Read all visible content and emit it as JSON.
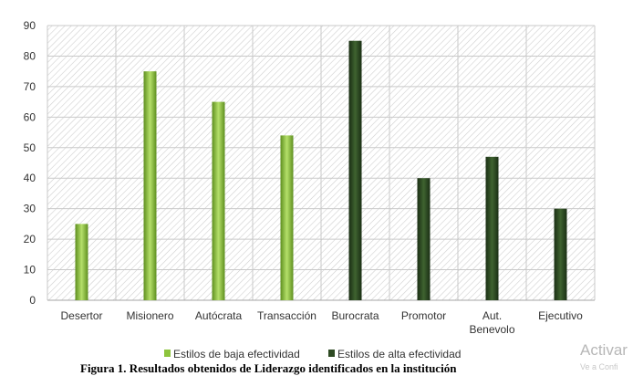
{
  "chart_data": {
    "type": "bar",
    "title": "",
    "xlabel": "",
    "ylabel": "",
    "ylim": [
      0,
      90
    ],
    "yticks": [
      0,
      10,
      20,
      30,
      40,
      50,
      60,
      70,
      80,
      90
    ],
    "grid": true,
    "legend": "bottom",
    "categories": [
      "Desertor",
      "Misionero",
      "Autócrata",
      "Transacción",
      "Burocrata",
      "Promotor",
      "Aut. Benevolo",
      "Ejecutivo"
    ],
    "category_lines": [
      [
        "Desertor"
      ],
      [
        "Misionero"
      ],
      [
        "Autócrata"
      ],
      [
        "Transacción"
      ],
      [
        "Burocrata"
      ],
      [
        "Promotor"
      ],
      [
        "Aut.",
        "Benevolo"
      ],
      [
        "Ejecutivo"
      ]
    ],
    "series": [
      {
        "name": "Estilos de baja efectividad",
        "color": "#8dc43d",
        "values": [
          25,
          75,
          65,
          54,
          null,
          null,
          null,
          null
        ]
      },
      {
        "name": "Estilos de alta efectividad",
        "color": "#2d4a22",
        "values": [
          null,
          null,
          null,
          null,
          85,
          40,
          47,
          30
        ]
      }
    ]
  },
  "caption": "Figura 1. Resultados obtenidos de Liderazgo identificados en la institución",
  "watermark": {
    "line1": "Activar",
    "line2": "Ve a Confi"
  }
}
